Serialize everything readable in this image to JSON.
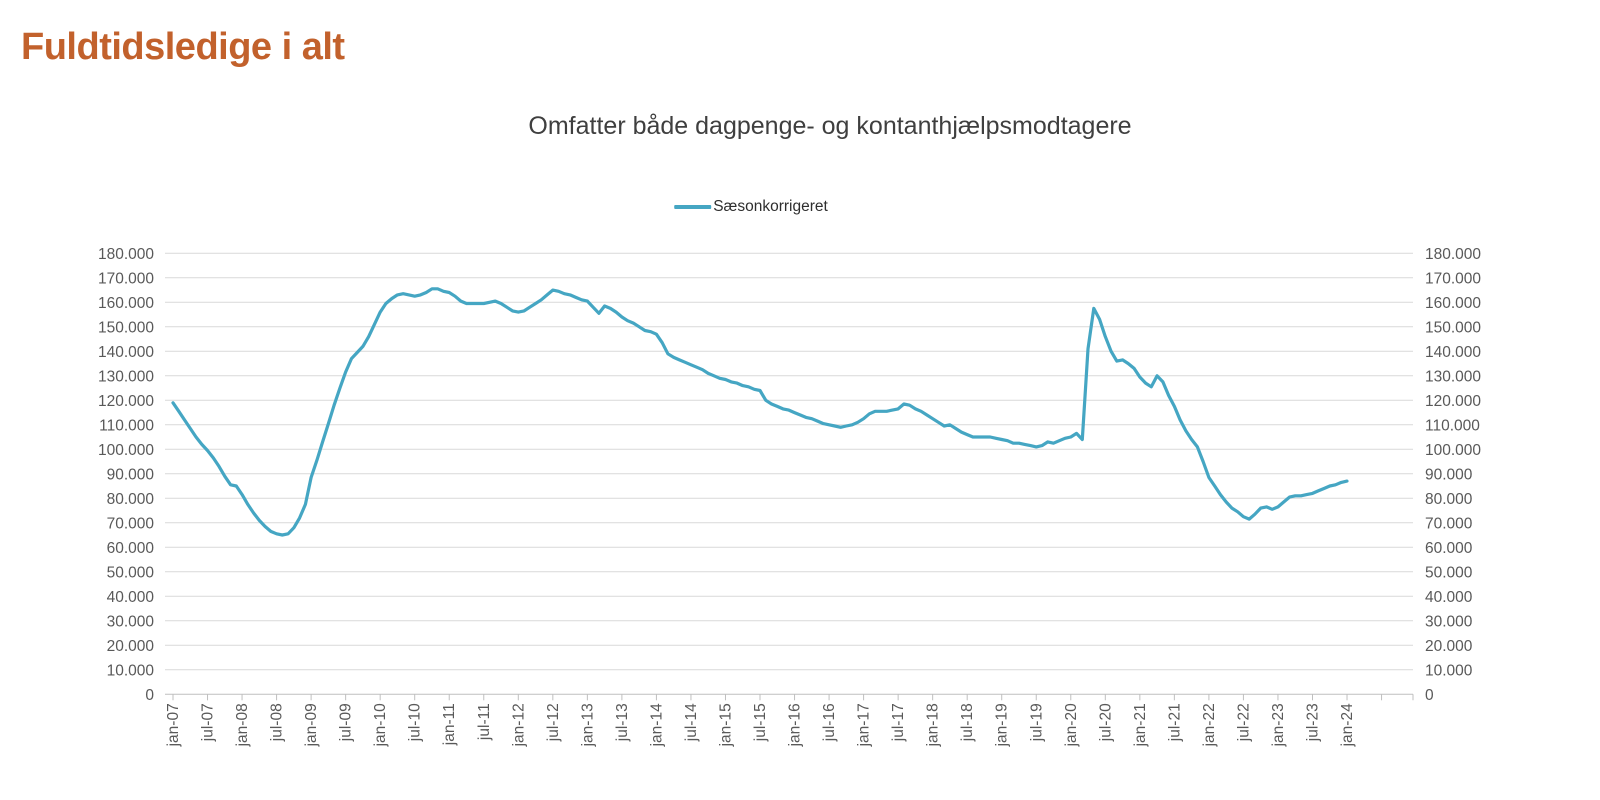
{
  "page": {
    "title": "Fuldtidsledige i alt"
  },
  "chart": {
    "title": "Omfatter både dagpenge- og kontanthjælpsmodtagere",
    "legend": {
      "label": "Sæsonkorrigeret"
    }
  },
  "colors": {
    "page_title": "#C2612C",
    "chart_title": "#3F3F3F",
    "axis_text": "#595959",
    "gridline": "#D9D9D9",
    "axis_line": "#BFBFBF",
    "series_line": "#45A6C3"
  },
  "chart_data": {
    "type": "line",
    "title": "Omfatter både dagpenge- og kontanthjælpsmodtagere",
    "x_start": "jan-07",
    "x_frequency": "monthly",
    "x_tick_labels": [
      "jan-07",
      "jul-07",
      "jan-08",
      "jul-08",
      "jan-09",
      "jul-09",
      "jan-10",
      "jul-10",
      "jan-11",
      "jul-11",
      "jan-12",
      "jul-12",
      "jan-13",
      "jul-13",
      "jan-14",
      "jul-14",
      "jan-15",
      "jul-15",
      "jan-16",
      "jul-16",
      "jan-17",
      "jul-17",
      "jan-18",
      "jul-18",
      "jan-19",
      "jul-19",
      "jan-20",
      "jul-20",
      "jan-21",
      "jul-21",
      "jan-22",
      "jul-22",
      "jan-23",
      "jul-23",
      "jan-24"
    ],
    "y_axis": {
      "min": 0,
      "max": 180000,
      "tick_step": 10000,
      "tick_format": "dot-thousands",
      "sides": [
        "left",
        "right"
      ]
    },
    "grid": "horizontal",
    "legend_position": "top-center",
    "series": [
      {
        "name": "Sæsonkorrigeret",
        "color": "#45A6C3",
        "values": [
          119000,
          115500,
          112000,
          108500,
          105000,
          102000,
          99500,
          96500,
          93000,
          89000,
          85500,
          85000,
          81500,
          77500,
          74000,
          71000,
          68500,
          66500,
          65500,
          65000,
          65500,
          68000,
          72000,
          77500,
          88500,
          95500,
          103000,
          110500,
          118000,
          125000,
          131500,
          137000,
          139500,
          142000,
          146000,
          151000,
          156000,
          159500,
          161500,
          163000,
          163500,
          163000,
          162500,
          163000,
          164000,
          165500,
          165500,
          164500,
          164000,
          162500,
          160500,
          159500,
          159500,
          159500,
          159500,
          160000,
          160500,
          159500,
          158000,
          156500,
          156000,
          156500,
          158000,
          159500,
          161000,
          163000,
          165000,
          164500,
          163500,
          163000,
          162000,
          161000,
          160500,
          158000,
          155500,
          158500,
          157500,
          156000,
          154000,
          152500,
          151500,
          150000,
          148500,
          148000,
          147000,
          143500,
          139000,
          137500,
          136500,
          135500,
          134500,
          133500,
          132500,
          131000,
          130000,
          129000,
          128500,
          127500,
          127000,
          126000,
          125500,
          124500,
          124000,
          120000,
          118500,
          117500,
          116500,
          116000,
          115000,
          114000,
          113000,
          112500,
          111500,
          110500,
          110000,
          109500,
          109000,
          109500,
          110000,
          111000,
          112500,
          114500,
          115500,
          115500,
          115500,
          116000,
          116500,
          118500,
          118000,
          116500,
          115500,
          114000,
          112500,
          111000,
          109500,
          110000,
          108500,
          107000,
          106000,
          105000,
          105000,
          105000,
          105000,
          104500,
          104000,
          103500,
          102500,
          102500,
          102000,
          101500,
          101000,
          101500,
          103000,
          102500,
          103500,
          104500,
          105000,
          106500,
          104000,
          141000,
          157500,
          153000,
          146000,
          140000,
          136000,
          136500,
          135000,
          133000,
          129500,
          127000,
          125500,
          130000,
          127500,
          122000,
          117500,
          112000,
          107500,
          104000,
          101000,
          95000,
          88500,
          85000,
          81500,
          78500,
          76000,
          74500,
          72500,
          71500,
          73500,
          76000,
          76500,
          75500,
          76500,
          78500,
          80500,
          81000,
          81000,
          81500,
          82000,
          83000,
          84000,
          85000,
          85500,
          86500,
          87000
        ]
      }
    ]
  }
}
